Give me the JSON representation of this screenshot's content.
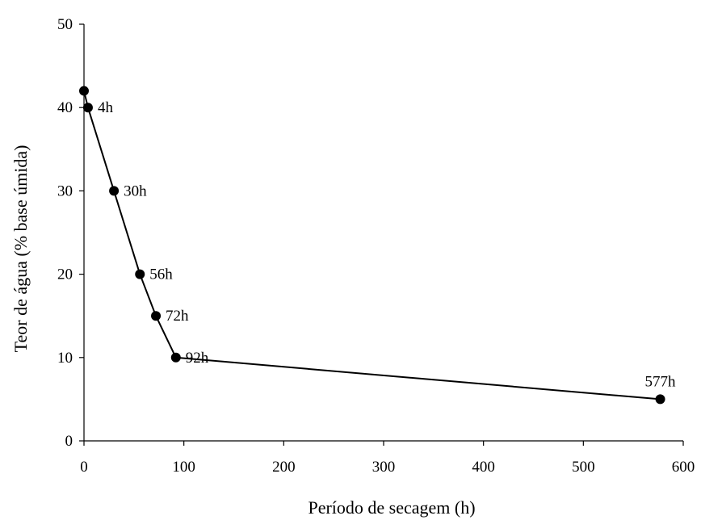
{
  "chart_data": {
    "type": "line",
    "xlabel": "Período de secagem (h)",
    "ylabel": "Teor de água (% base úmida)",
    "xlim": [
      0,
      600
    ],
    "ylim": [
      0,
      50
    ],
    "xticks": [
      0,
      100,
      200,
      300,
      400,
      500,
      600
    ],
    "yticks": [
      0,
      10,
      20,
      30,
      40,
      50
    ],
    "grid": false,
    "series": [
      {
        "points": [
          {
            "x": 0,
            "y": 42,
            "label": ""
          },
          {
            "x": 4,
            "y": 40,
            "label": "4h"
          },
          {
            "x": 30,
            "y": 30,
            "label": "30h"
          },
          {
            "x": 56,
            "y": 20,
            "label": "56h"
          },
          {
            "x": 72,
            "y": 15,
            "label": "72h"
          },
          {
            "x": 92,
            "y": 10,
            "label": "92h"
          },
          {
            "x": 577,
            "y": 5,
            "label": "577h"
          }
        ]
      }
    ],
    "colors": {
      "line": "#000000",
      "marker": "#000000"
    }
  }
}
